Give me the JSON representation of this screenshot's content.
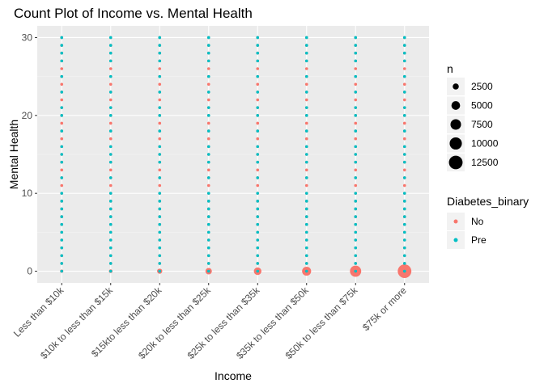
{
  "chart_data": {
    "type": "scatter",
    "title": "Count Plot of Income vs. Mental Health",
    "xlabel": "Income",
    "ylabel": "Mental Health",
    "categories": [
      "Less than $10k",
      "$10k to less than $15k",
      "$15kto less than $20k",
      "$20k to less than $25k",
      "$25k to less than $35k",
      "$35k to less than $50k",
      "$50k to less than $75k",
      "$75k or more"
    ],
    "y_ticks": [
      0,
      10,
      20,
      30
    ],
    "ylim": [
      -1.5,
      31.5
    ],
    "grid": true,
    "legend_position": "right",
    "size_legend": {
      "title": "n",
      "values": [
        2500,
        5000,
        7500,
        10000,
        12500
      ]
    },
    "color_legend": {
      "title": "Diabetes_binary",
      "entries": [
        {
          "label": "No",
          "color": "#F8766D"
        },
        {
          "label": "Pre",
          "color": "#00BFC4"
        }
      ]
    },
    "series": [
      {
        "name": "No",
        "color": "#F8766D",
        "points_y": [
          0,
          1,
          2,
          3,
          4,
          5,
          6,
          7,
          8,
          9,
          10,
          11,
          12,
          13,
          14,
          15,
          16,
          17,
          18,
          19,
          20,
          21,
          22,
          23,
          24,
          25,
          26,
          27,
          28,
          29,
          30
        ],
        "zero_counts": [
          700,
          900,
          1800,
          2800,
          3800,
          5500,
          8500,
          12500
        ]
      },
      {
        "name": "Pre",
        "color": "#00BFC4",
        "points_y": [
          0,
          1,
          2,
          3,
          4,
          5,
          6,
          7,
          8,
          9,
          10,
          12,
          14,
          15,
          16,
          18,
          20,
          21,
          23,
          25,
          27,
          28,
          29,
          30
        ],
        "zero_counts": [
          80,
          90,
          150,
          200,
          300,
          400,
          500,
          600
        ]
      }
    ]
  }
}
